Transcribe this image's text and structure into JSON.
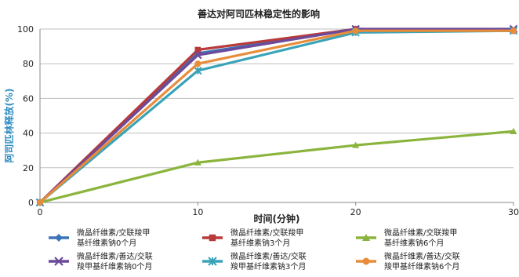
{
  "chart_data": {
    "type": "line",
    "title": "善达对阿司匹林稳定性的影响",
    "xlabel": "时间(分钟)",
    "ylabel": "阿司匹林释放(%)",
    "x": [
      0,
      10,
      20,
      30
    ],
    "xlim": [
      0,
      30
    ],
    "ylim": [
      0,
      100
    ],
    "xticks": [
      "0",
      "10",
      "20",
      "30"
    ],
    "yticks": [
      "0",
      "20",
      "40",
      "60",
      "80",
      "100"
    ],
    "grid": "horizontal",
    "legend_position": "bottom",
    "series": [
      {
        "name": "微晶纤维素/交联羧甲基纤维素钠0个月",
        "color": "#3d74b8",
        "marker": "diamond",
        "values": [
          0,
          86,
          100,
          99
        ]
      },
      {
        "name": "微晶纤维素/交联羧甲基纤维素钠3个月",
        "color": "#b83a3a",
        "marker": "square",
        "values": [
          0,
          88,
          100,
          99
        ]
      },
      {
        "name": "微晶纤维素/交联羧甲基纤维素钠6个月",
        "color": "#8ab43c",
        "marker": "triangle",
        "values": [
          0,
          23,
          33,
          41
        ]
      },
      {
        "name": "微晶纤维素/善达/交联羧甲基纤维素钠0个月",
        "color": "#6c4a9a",
        "marker": "x",
        "values": [
          0,
          85,
          100,
          100
        ]
      },
      {
        "name": "微晶纤维素/善达/交联羧甲基纤维素钠3个月",
        "color": "#3aa3b8",
        "marker": "star",
        "values": [
          0,
          76,
          98,
          99
        ]
      },
      {
        "name": "微晶纤维素/善达/交联羧甲基纤维素钠6个月",
        "color": "#e98c3a",
        "marker": "circle",
        "values": [
          0,
          80,
          99,
          99
        ]
      }
    ]
  }
}
